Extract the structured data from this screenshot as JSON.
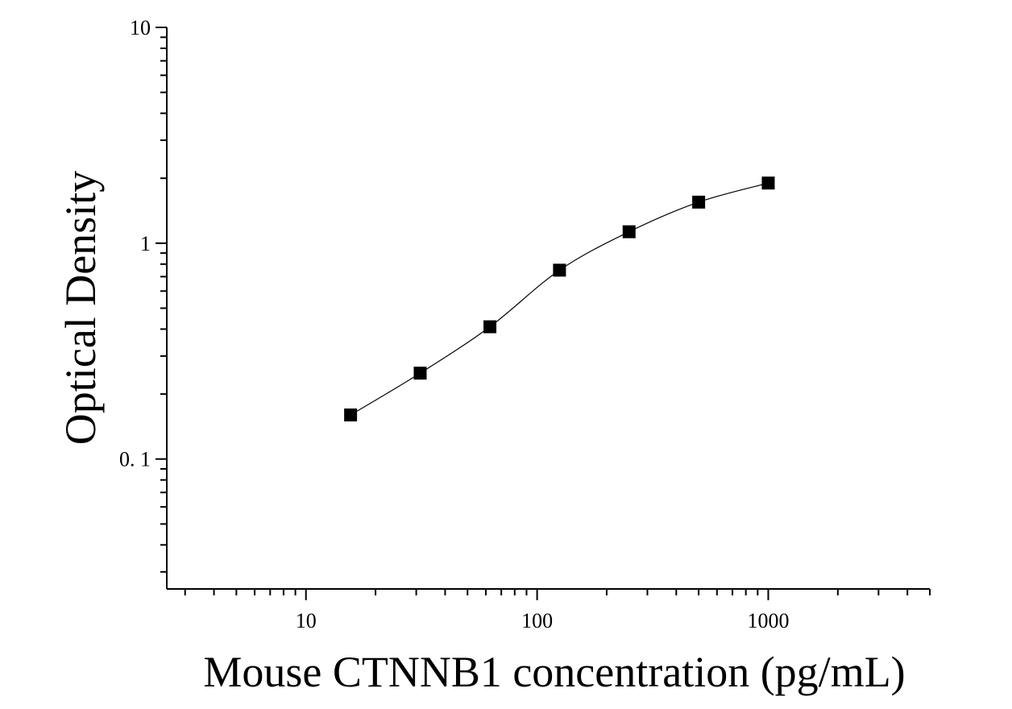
{
  "chart_data": {
    "type": "scatter",
    "title": "",
    "xlabel": "Mouse CTNNB1 concentration (pg/mL)",
    "ylabel": "Optical Density",
    "x_scale": "log",
    "y_scale": "log",
    "xlim": [
      2.5,
      5000
    ],
    "ylim": [
      0.025,
      10
    ],
    "x_ticks": [
      {
        "value": 10,
        "label": "10"
      },
      {
        "value": 100,
        "label": "100"
      },
      {
        "value": 1000,
        "label": "1000"
      }
    ],
    "y_ticks": [
      {
        "value": 0.1,
        "label": "0. 1"
      },
      {
        "value": 1,
        "label": "1"
      },
      {
        "value": 10,
        "label": "10"
      }
    ],
    "grid": false,
    "legend": "none",
    "marker": "square",
    "series": [
      {
        "x": [
          15.6,
          31.2,
          62.5,
          125,
          250,
          500,
          1000
        ],
        "y": [
          0.16,
          0.25,
          0.41,
          0.75,
          1.13,
          1.55,
          1.9
        ]
      }
    ],
    "fit_curve": "smooth",
    "colors": {
      "marker": "#000000",
      "line": "#000000",
      "axis": "#000000"
    }
  }
}
